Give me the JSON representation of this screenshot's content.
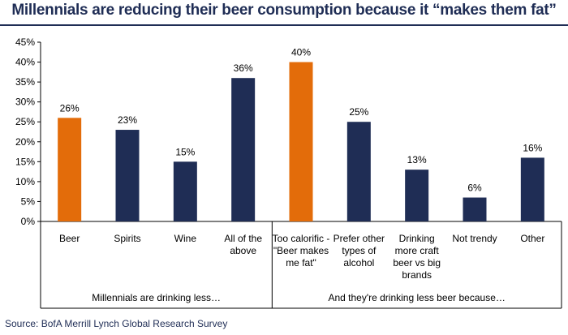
{
  "title": "Millennials are reducing their beer consumption because it “makes them fat”",
  "source": "Source: BofA Merrill Lynch Global Research Survey",
  "colors": {
    "highlight": "#e36c0a",
    "bar": "#1f2d55",
    "title": "#1f2d55"
  },
  "chart_data": {
    "type": "bar",
    "title": "Millennials are reducing their beer consumption because it “makes them fat”",
    "xlabel": "",
    "ylabel": "",
    "ylim": [
      0,
      45
    ],
    "yticks": [
      "0%",
      "5%",
      "10%",
      "15%",
      "20%",
      "25%",
      "30%",
      "35%",
      "40%",
      "45%"
    ],
    "grid": false,
    "categories": [
      [
        "Beer"
      ],
      [
        "Spirits"
      ],
      [
        "Wine"
      ],
      [
        "All of the",
        "above"
      ],
      [
        "Too calorific -",
        "\"Beer makes",
        "me fat\""
      ],
      [
        "Prefer other",
        "types of",
        "alcohol"
      ],
      [
        "Drinking",
        "more craft",
        "beer vs big",
        "brands"
      ],
      [
        "Not trendy"
      ],
      [
        "Other"
      ]
    ],
    "values": [
      26,
      23,
      15,
      36,
      40,
      25,
      13,
      6,
      16
    ],
    "value_labels": [
      "26%",
      "23%",
      "15%",
      "36%",
      "40%",
      "25%",
      "13%",
      "6%",
      "16%"
    ],
    "highlighted": [
      0,
      4
    ],
    "groups": [
      {
        "label": "Millennials are drinking less…",
        "start": 0,
        "end": 3
      },
      {
        "label": "And they're drinking less beer because…",
        "start": 4,
        "end": 8
      }
    ]
  }
}
